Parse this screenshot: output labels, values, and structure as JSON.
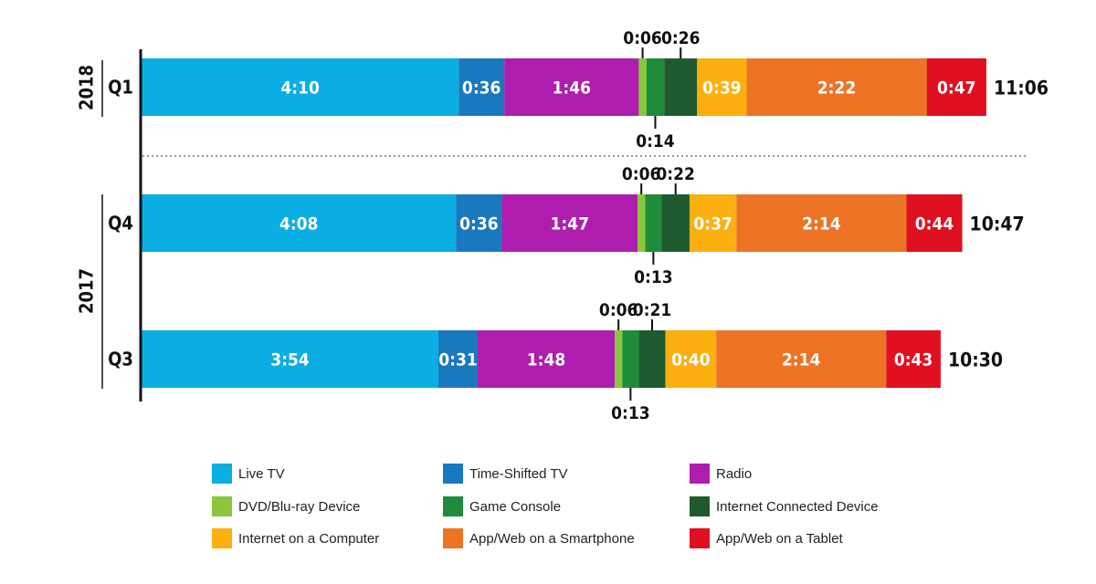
{
  "chart_data": {
    "type": "bar",
    "orientation": "horizontal",
    "stacked": true,
    "units": "hours:minutes",
    "groups": [
      {
        "year": "2018",
        "periods": [
          "Q1"
        ]
      },
      {
        "year": "2017",
        "periods": [
          "Q4",
          "Q3"
        ]
      }
    ],
    "categories": [
      "Q1",
      "Q4",
      "Q3"
    ],
    "series": [
      {
        "name": "Live TV",
        "color": "#0aaee3",
        "values": [
          "4:10",
          "4:08",
          "3:54"
        ]
      },
      {
        "name": "Time-Shifted TV",
        "color": "#1a78be",
        "values": [
          "0:36",
          "0:36",
          "0:31"
        ]
      },
      {
        "name": "Radio",
        "color": "#ae1dad",
        "values": [
          "1:46",
          "1:47",
          "1:48"
        ]
      },
      {
        "name": "DVD/Blu-ray Device",
        "color": "#8cc63f",
        "values": [
          "0:06",
          "0:06",
          "0:06"
        ]
      },
      {
        "name": "Game Console",
        "color": "#1e8c3a",
        "values": [
          "0:14",
          "0:13",
          "0:13"
        ]
      },
      {
        "name": "Internet Connected Device",
        "color": "#1e5a2d",
        "values": [
          "0:26",
          "0:22",
          "0:21"
        ]
      },
      {
        "name": "Internet on a Computer",
        "color": "#fbb010",
        "values": [
          "0:39",
          "0:37",
          "0:40"
        ]
      },
      {
        "name": "App/Web on a Smartphone",
        "color": "#ec7424",
        "values": [
          "2:22",
          "2:14",
          "2:14"
        ]
      },
      {
        "name": "App/Web on a Tablet",
        "color": "#e01020",
        "values": [
          "0:47",
          "0:44",
          "0:43"
        ]
      }
    ],
    "totals": [
      "11:06",
      "10:47",
      "10:30"
    ],
    "legend_position": "bottom",
    "grid": false
  },
  "legend": {
    "rows": [
      [
        "Live TV",
        "Time-Shifted TV",
        "Radio"
      ],
      [
        "DVD/Blu-ray Device",
        "Game Console",
        "Internet Connected Device"
      ],
      [
        "Internet on a Computer",
        "App/Web on a Smartphone",
        "App/Web on a Tablet"
      ]
    ]
  }
}
